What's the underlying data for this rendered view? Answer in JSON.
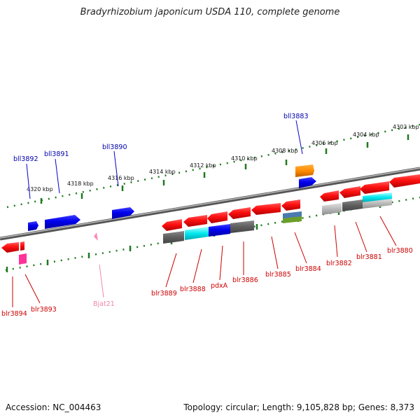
{
  "title": "Bradyrhizobium japonicum USDA 110, complete genome",
  "footer": {
    "accession": "Accession: NC_004463",
    "summary": "Topology: circular; Length: 9,105,828 bp; Genes: 8,373"
  },
  "colors": {
    "backbone": "#7a7a7a",
    "ruler": "#1f7a1f",
    "forward_label": "#0000aa",
    "reverse_label": "#cc0000",
    "rna_label": "#ee88aa"
  },
  "ruler_labels": [
    "4320 kbp",
    "4318 kbp",
    "4316 kbp",
    "4314 kbp",
    "4312 kbp",
    "4310 kbp",
    "4308 kbp",
    "4306 kbp",
    "4304 kbp",
    "4302 kbp"
  ],
  "forward_genes": [
    "bll3892",
    "bll3891",
    "bll3890",
    "bll3883"
  ],
  "reverse_genes": [
    "blr3894",
    "blr3893",
    "blr3889",
    "blr3888",
    "pdxA",
    "blr3886",
    "blr3885",
    "blr3884",
    "blr3882",
    "blr3881",
    "blr3880"
  ],
  "rna_genes": [
    "Bjat21"
  ]
}
